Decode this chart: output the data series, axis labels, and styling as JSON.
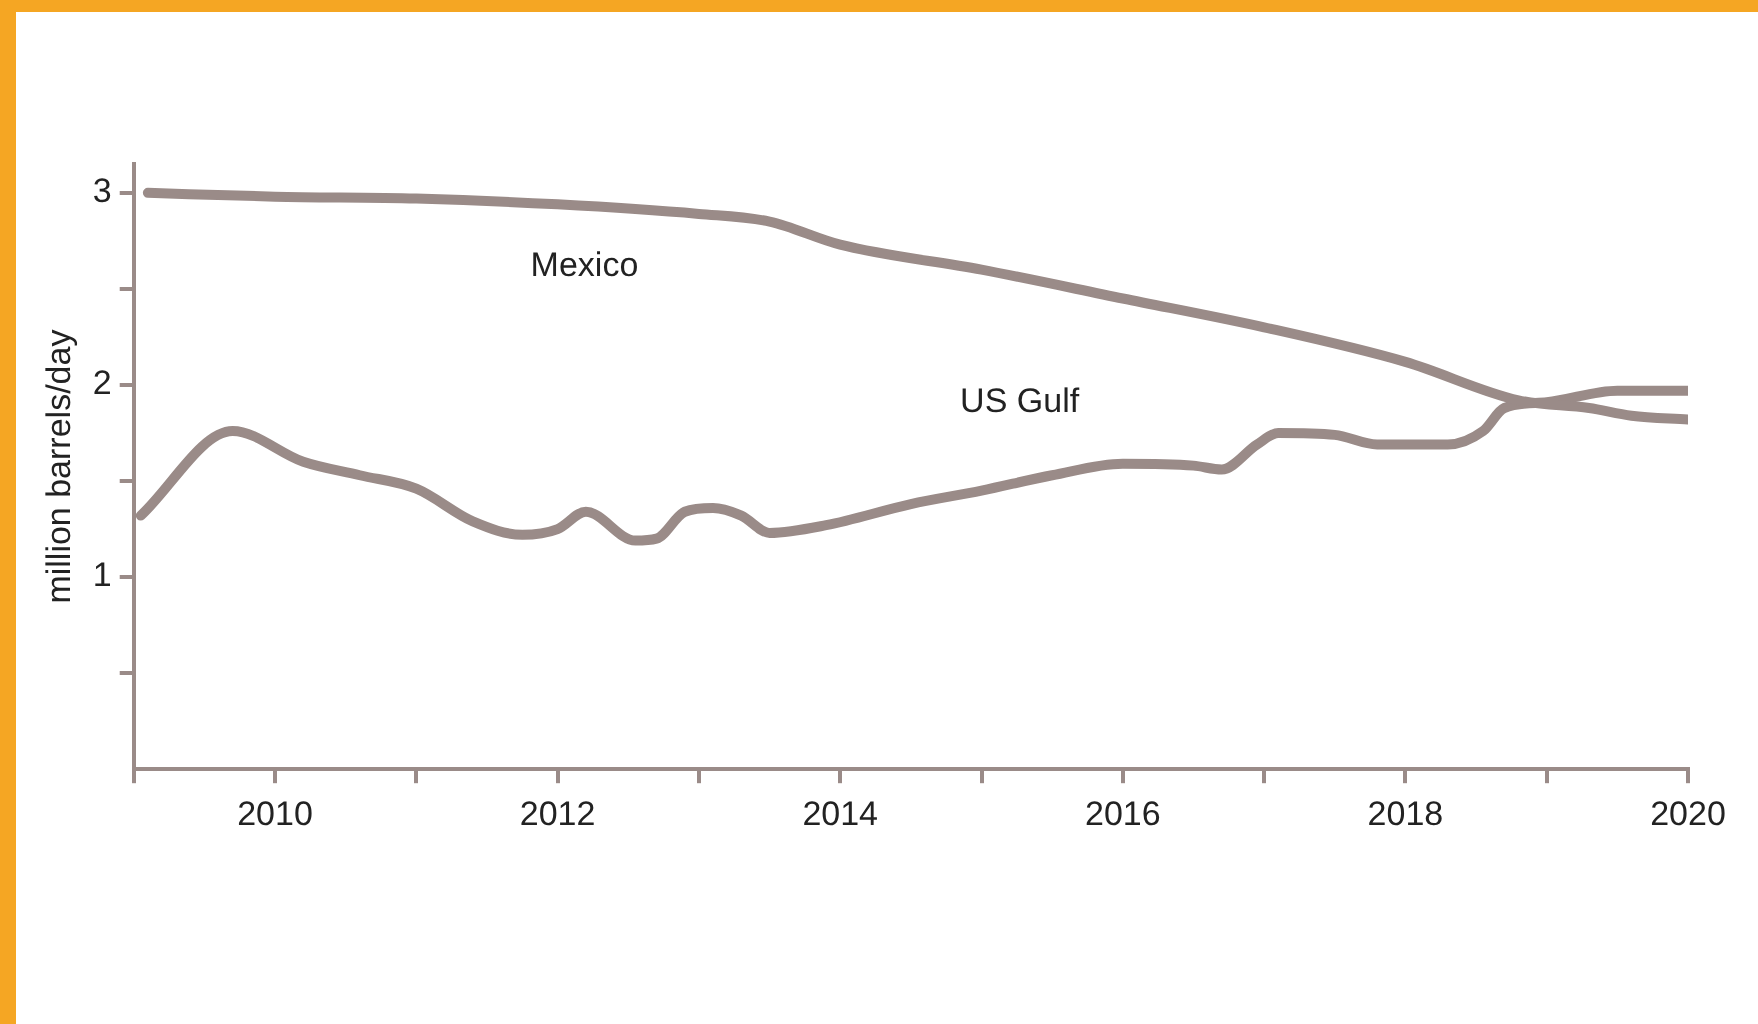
{
  "chart_data": {
    "type": "line",
    "ylabel": "million barrels/day",
    "xlim": [
      2009,
      2020
    ],
    "ylim": [
      0,
      3.15
    ],
    "xticks": [
      {
        "value": 2009,
        "label": null
      },
      2010,
      {
        "value": 2011,
        "label": null
      },
      2012,
      {
        "value": 2013,
        "label": null
      },
      2014,
      {
        "value": 2015,
        "label": null
      },
      2016,
      {
        "value": 2017,
        "label": null
      },
      2018,
      {
        "value": 2019,
        "label": null
      },
      2020
    ],
    "yticks": [
      {
        "value": 0.5,
        "label": null
      },
      1,
      {
        "value": 1.5,
        "label": null
      },
      2,
      {
        "value": 2.5,
        "label": null
      },
      3
    ],
    "grid": false,
    "legend": false,
    "marker": "none",
    "line_style": "solid",
    "series": [
      {
        "name": "Mexico",
        "color": "#9a8b88",
        "x": [
          2009.1,
          2010,
          2011,
          2012,
          2013,
          2013.5,
          2014,
          2015,
          2016,
          2017,
          2018,
          2018.8,
          2019.3,
          2019.6,
          2020
        ],
        "values": [
          3.0,
          2.98,
          2.97,
          2.94,
          2.89,
          2.85,
          2.73,
          2.6,
          2.45,
          2.3,
          2.12,
          1.92,
          1.88,
          1.84,
          1.82
        ]
      },
      {
        "name": "US Gulf",
        "color": "#9a8b88",
        "x": [
          2009.05,
          2009.7,
          2010.2,
          2010.6,
          2011,
          2011.4,
          2011.75,
          2012,
          2012.2,
          2012.55,
          2012.7,
          2012.9,
          2013.1,
          2013.3,
          2013.5,
          2013.9,
          2014.5,
          2015,
          2015.5,
          2016,
          2016.5,
          2016.7,
          2016.95,
          2017.1,
          2017.5,
          2017.8,
          2018.3,
          2018.55,
          2018.7,
          2019,
          2019.5,
          2020
        ],
        "values": [
          1.32,
          1.76,
          1.6,
          1.53,
          1.46,
          1.29,
          1.22,
          1.25,
          1.34,
          1.19,
          1.2,
          1.34,
          1.36,
          1.32,
          1.23,
          1.27,
          1.38,
          1.45,
          1.53,
          1.59,
          1.58,
          1.56,
          1.69,
          1.75,
          1.74,
          1.69,
          1.69,
          1.76,
          1.88,
          1.91,
          1.97,
          1.97
        ]
      }
    ]
  }
}
